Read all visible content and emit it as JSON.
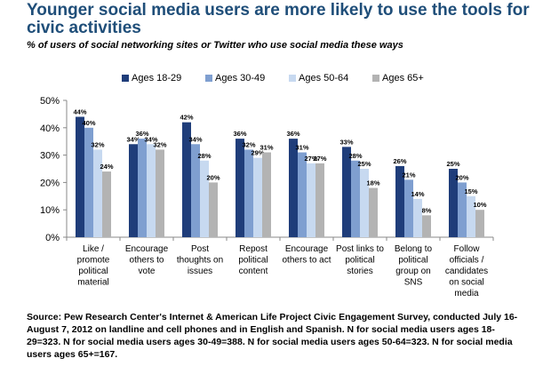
{
  "title": "Younger social media users are more likely to use the tools for civic activities",
  "subtitle": "% of users of social networking sites or Twitter who use social media these ways",
  "source": "Source: Pew Research Center's Internet & American Life Project Civic Engagement Survey, conducted July 16-August 7, 2012 on landline and cell phones and in English and Spanish. N for social media users ages 18-29=323. N for social media users ages 30-49=388. N for social media users ages 50-64=323. N for social media users ages 65+=167.",
  "chart_data": {
    "type": "bar",
    "categories": [
      [
        "Like /",
        "promote",
        "political",
        "material"
      ],
      [
        "Encourage",
        "others to",
        "vote"
      ],
      [
        "Post",
        "thoughts on",
        "issues"
      ],
      [
        "Repost",
        "political",
        "content"
      ],
      [
        "Encourage",
        "others to act"
      ],
      [
        "Post links to",
        "political",
        "stories"
      ],
      [
        "Belong to",
        "political",
        "group on",
        "SNS"
      ],
      [
        "Follow",
        "officials /",
        "candidates",
        "on social",
        "media"
      ]
    ],
    "series": [
      {
        "name": "Ages 18-29",
        "color": "#1f3d7a",
        "values": [
          44,
          34,
          42,
          36,
          36,
          33,
          26,
          25
        ]
      },
      {
        "name": "Ages 30-49",
        "color": "#7f9fd0",
        "values": [
          40,
          36,
          34,
          32,
          31,
          28,
          21,
          20
        ]
      },
      {
        "name": "Ages 50-64",
        "color": "#c7d9f0",
        "values": [
          32,
          34,
          28,
          29,
          27,
          25,
          14,
          15
        ]
      },
      {
        "name": "Ages 65+",
        "color": "#b3b3b3",
        "values": [
          24,
          32,
          20,
          31,
          27,
          18,
          8,
          10
        ]
      }
    ],
    "ylim": [
      0,
      50
    ],
    "yticks": [
      "0%",
      "10%",
      "20%",
      "30%",
      "40%",
      "50%"
    ],
    "legend_position": "top-right",
    "grid": false
  }
}
